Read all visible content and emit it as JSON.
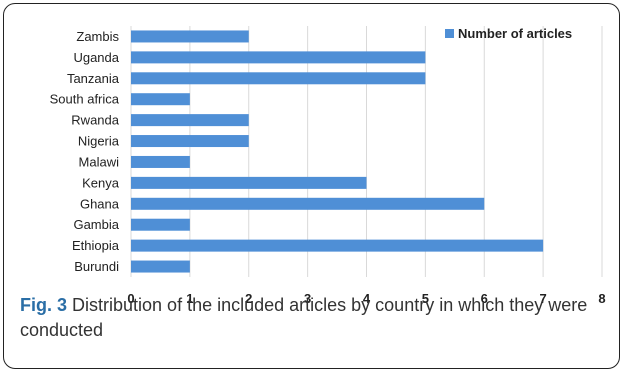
{
  "chart_data": {
    "type": "bar",
    "orientation": "horizontal",
    "categories": [
      "Zambis",
      "Uganda",
      "Tanzania",
      "South africa",
      "Rwanda",
      "Nigeria",
      "Malawi",
      "Kenya",
      "Ghana",
      "Gambia",
      "Ethiopia",
      "Burundi"
    ],
    "series": [
      {
        "name": "Number of articles",
        "values": [
          2,
          5,
          5,
          1,
          2,
          2,
          1,
          4,
          6,
          1,
          7,
          1
        ],
        "color": "#4f8fd6"
      }
    ],
    "xlim": [
      0,
      8
    ],
    "xticks": [
      "0",
      "1",
      "2",
      "3",
      "4",
      "5",
      "6",
      "7",
      "8"
    ],
    "grid": true,
    "legend_position": "top-right"
  },
  "caption": {
    "label": "Fig. 3",
    "text": " Distribution of the included articles by country in which they were conducted"
  }
}
